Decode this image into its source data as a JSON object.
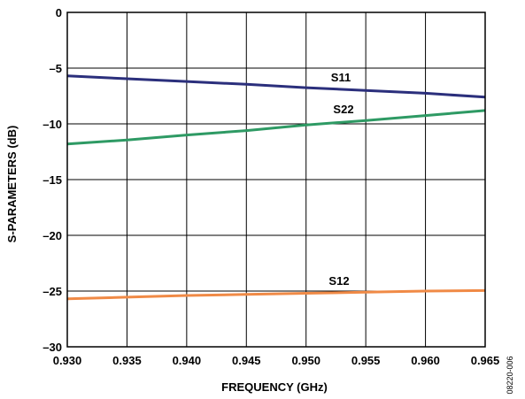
{
  "chart_data": {
    "type": "line",
    "xlabel": "FREQUENCY (GHz)",
    "ylabel": "S-PARAMETERS (dB)",
    "xlim": [
      0.93,
      0.965
    ],
    "ylim": [
      -30,
      0
    ],
    "x_ticks": [
      "0.930",
      "0.935",
      "0.940",
      "0.945",
      "0.950",
      "0.955",
      "0.960",
      "0.965"
    ],
    "y_ticks": [
      "0",
      "–5",
      "–10",
      "–15",
      "–20",
      "–25",
      "–30"
    ],
    "grid": true,
    "series": [
      {
        "name": "S11",
        "color": "#2b2f7c",
        "x": [
          0.93,
          0.935,
          0.94,
          0.945,
          0.95,
          0.955,
          0.96,
          0.965
        ],
        "y": [
          -5.7,
          -5.95,
          -6.2,
          -6.45,
          -6.75,
          -7.0,
          -7.25,
          -7.6
        ]
      },
      {
        "name": "S22",
        "color": "#2e9a64",
        "x": [
          0.93,
          0.935,
          0.94,
          0.945,
          0.95,
          0.955,
          0.96,
          0.965
        ],
        "y": [
          -11.8,
          -11.45,
          -11.0,
          -10.6,
          -10.1,
          -9.7,
          -9.25,
          -8.8
        ]
      },
      {
        "name": "S12",
        "color": "#f08a46",
        "x": [
          0.93,
          0.935,
          0.94,
          0.945,
          0.95,
          0.955,
          0.96,
          0.965
        ],
        "y": [
          -25.7,
          -25.55,
          -25.4,
          -25.3,
          -25.2,
          -25.1,
          -25.0,
          -24.95
        ]
      }
    ]
  },
  "figure_id": "08220-006"
}
